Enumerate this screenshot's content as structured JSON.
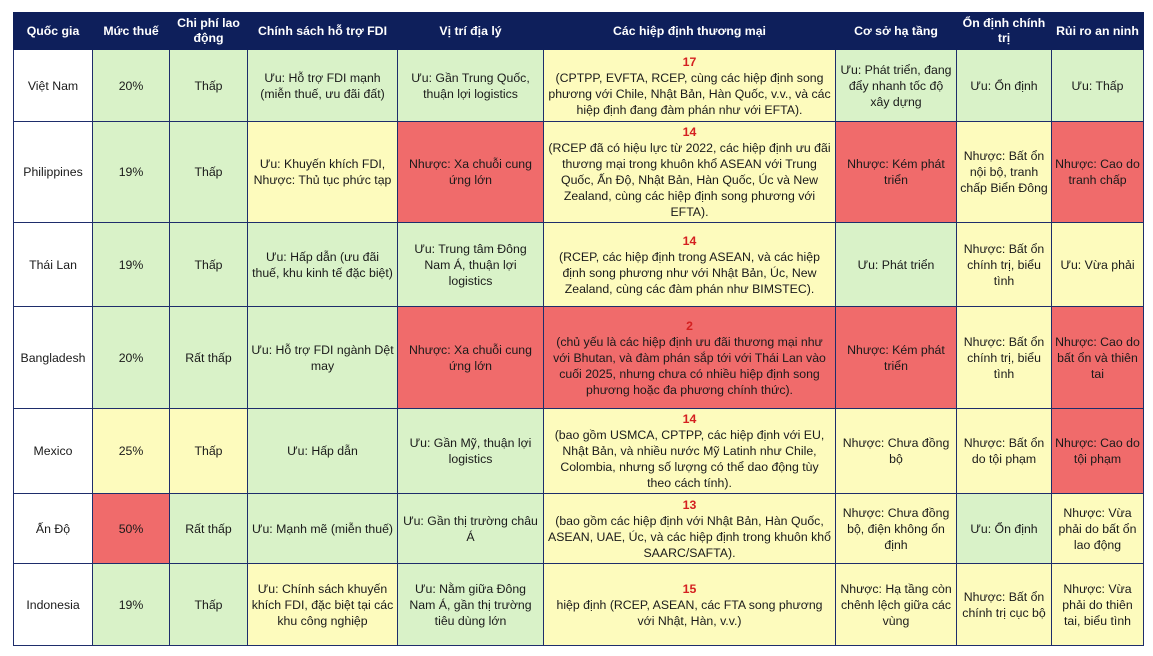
{
  "table": {
    "header": [
      "Quốc gia",
      "Mức thuế",
      "Chi phí lao động",
      "Chính sách hỗ trợ FDI",
      "Vị trí địa lý",
      "Các hiệp định thương mại",
      "Cơ sở hạ tầng",
      "Ổn định chính trị",
      "Rủi ro an ninh"
    ],
    "rows": [
      {
        "cells": [
          {
            "text": "Việt Nam",
            "color": "#ffffff"
          },
          {
            "text": "20%",
            "color": "#d9f2c8"
          },
          {
            "text": "Thấp",
            "color": "#d9f2c8"
          },
          {
            "text": "Ưu: Hỗ trợ FDI mạnh (miễn thuế, ưu đãi đất)",
            "color": "#d9f2c8"
          },
          {
            "text": "Ưu: Gần Trung Quốc, thuận lợi logistics",
            "color": "#d9f2c8"
          },
          {
            "count": 17,
            "text": "(CPTPP, EVFTA, RCEP, cùng các hiệp định song phương với Chile, Nhật Bản, Hàn Quốc, v.v., và các hiệp định đang đàm phán như với EFTA).",
            "color": "#fdfbbd"
          },
          {
            "text": "Ưu: Phát triển, đang đẩy nhanh tốc độ xây dựng",
            "color": "#d9f2c8"
          },
          {
            "text": "Ưu: Ổn định",
            "color": "#d9f2c8"
          },
          {
            "text": "Ưu: Thấp",
            "color": "#d9f2c8"
          }
        ]
      },
      {
        "cells": [
          {
            "text": "Philippines",
            "color": "#ffffff"
          },
          {
            "text": "19%",
            "color": "#d9f2c8"
          },
          {
            "text": "Thấp",
            "color": "#d9f2c8"
          },
          {
            "text": "Ưu: Khuyến khích FDI, Nhược: Thủ tục phức tạp",
            "color": "#fdfbbd"
          },
          {
            "text": "Nhược: Xa chuỗi cung ứng lớn",
            "color": "#f06b6b"
          },
          {
            "count": 14,
            "text": "(RCEP đã có hiệu lực từ 2022, các hiệp định ưu đãi thương mại trong khuôn khổ ASEAN với Trung Quốc, Ấn Độ, Nhật Bản, Hàn Quốc, Úc và New Zealand, cùng các hiệp định song phương với EFTA).",
            "color": "#fdfbbd"
          },
          {
            "text": "Nhược: Kém phát triển",
            "color": "#f06b6b"
          },
          {
            "text": "Nhược: Bất ổn nội bộ, tranh chấp Biển Đông",
            "color": "#fdfbbd"
          },
          {
            "text": "Nhược: Cao do tranh chấp",
            "color": "#f06b6b"
          }
        ]
      },
      {
        "cells": [
          {
            "text": "Thái Lan",
            "color": "#ffffff"
          },
          {
            "text": "19%",
            "color": "#d9f2c8"
          },
          {
            "text": "Thấp",
            "color": "#d9f2c8"
          },
          {
            "text": "Ưu: Hấp dẫn (ưu đãi thuế, khu kinh tế đặc biệt)",
            "color": "#d9f2c8"
          },
          {
            "text": "Ưu: Trung tâm Đông Nam Á, thuận lợi logistics",
            "color": "#d9f2c8"
          },
          {
            "count": 14,
            "text": "(RCEP, các hiệp định trong ASEAN, và các hiệp định song phương như với Nhật Bản, Úc, New Zealand, cùng các đàm phán như BIMSTEC).",
            "color": "#fdfbbd"
          },
          {
            "text": "Ưu: Phát triển",
            "color": "#d9f2c8"
          },
          {
            "text": "Nhược: Bất ổn chính trị, biểu tình",
            "color": "#fdfbbd"
          },
          {
            "text": "Ưu: Vừa phải",
            "color": "#fdfbbd"
          }
        ]
      },
      {
        "cells": [
          {
            "text": "Bangladesh",
            "color": "#ffffff"
          },
          {
            "text": "20%",
            "color": "#d9f2c8"
          },
          {
            "text": "Rất thấp",
            "color": "#d9f2c8"
          },
          {
            "text": "Ưu: Hỗ trợ FDI ngành Dệt may",
            "color": "#d9f2c8"
          },
          {
            "text": "Nhược: Xa chuỗi cung ứng lớn",
            "color": "#f06b6b"
          },
          {
            "count": 2,
            "text": "(chủ yếu là các hiệp định ưu đãi thương mại như với Bhutan, và đàm phán sắp tới với Thái Lan vào cuối 2025, nhưng chưa có nhiều hiệp định song phương hoặc đa phương chính thức).",
            "color": "#f06b6b"
          },
          {
            "text": "Nhược: Kém phát triển",
            "color": "#f06b6b"
          },
          {
            "text": "Nhược: Bất ổn chính trị, biểu tình",
            "color": "#fdfbbd"
          },
          {
            "text": "Nhược: Cao do bất ổn và thiên tai",
            "color": "#f06b6b"
          }
        ]
      },
      {
        "cells": [
          {
            "text": "Mexico",
            "color": "#ffffff"
          },
          {
            "text": "25%",
            "color": "#fdfbbd"
          },
          {
            "text": "Thấp",
            "color": "#fdfbbd"
          },
          {
            "text": "Ưu: Hấp dẫn",
            "color": "#d9f2c8"
          },
          {
            "text": "Ưu: Gần Mỹ, thuận lợi logistics",
            "color": "#d9f2c8"
          },
          {
            "count": 14,
            "text": "(bao gồm USMCA, CPTPP, các hiệp định với EU, Nhật Bản, và nhiều nước Mỹ Latinh như Chile, Colombia, nhưng số lượng có thể dao động tùy theo cách tính).",
            "color": "#fdfbbd"
          },
          {
            "text": "Nhược: Chưa đồng bộ",
            "color": "#fdfbbd"
          },
          {
            "text": "Nhược: Bất ổn do tội phạm",
            "color": "#fdfbbd"
          },
          {
            "text": "Nhược: Cao do tội phạm",
            "color": "#f06b6b"
          }
        ]
      },
      {
        "cells": [
          {
            "text": "Ấn Độ",
            "color": "#ffffff"
          },
          {
            "text": "50%",
            "color": "#f06b6b"
          },
          {
            "text": "Rất thấp",
            "color": "#d9f2c8"
          },
          {
            "text": "Ưu: Mạnh mẽ (miễn thuế)",
            "color": "#d9f2c8"
          },
          {
            "text": "Ưu: Gần thị trường châu Á",
            "color": "#d9f2c8"
          },
          {
            "count": 13,
            "text": "(bao gồm các hiệp định với Nhật Bản, Hàn Quốc, ASEAN, UAE, Úc, và các hiệp định trong khuôn khổ SAARC/SAFTA).",
            "color": "#fdfbbd"
          },
          {
            "text": "Nhược: Chưa đồng bộ, điện không ổn định",
            "color": "#fdfbbd"
          },
          {
            "text": "Ưu: Ổn định",
            "color": "#d9f2c8"
          },
          {
            "text": "Nhược: Vừa phải do bất ổn lao động",
            "color": "#fdfbbd"
          }
        ]
      },
      {
        "cells": [
          {
            "text": "Indonesia",
            "color": "#ffffff"
          },
          {
            "text": "19%",
            "color": "#d9f2c8"
          },
          {
            "text": "Thấp",
            "color": "#d9f2c8"
          },
          {
            "text": "Ưu: Chính sách khuyến khích FDI, đặc biệt tại các khu công nghiệp",
            "color": "#fdfbbd"
          },
          {
            "text": "Ưu: Nằm giữa Đông Nam Á, gần thị trường tiêu dùng lớn",
            "color": "#d9f2c8"
          },
          {
            "count": 15,
            "text": "hiệp định (RCEP, ASEAN, các FTA song phương với Nhật, Hàn, v.v.)",
            "color": "#fdfbbd"
          },
          {
            "text": "Nhược: Hạ tầng còn chênh lệch giữa các vùng",
            "color": "#fdfbbd"
          },
          {
            "text": "Nhược: Bất ổn chính trị cục bộ",
            "color": "#fdfbbd"
          },
          {
            "text": "Nhược: Vừa phải do thiên tai, biểu tình",
            "color": "#fdfbbd"
          }
        ]
      }
    ]
  }
}
